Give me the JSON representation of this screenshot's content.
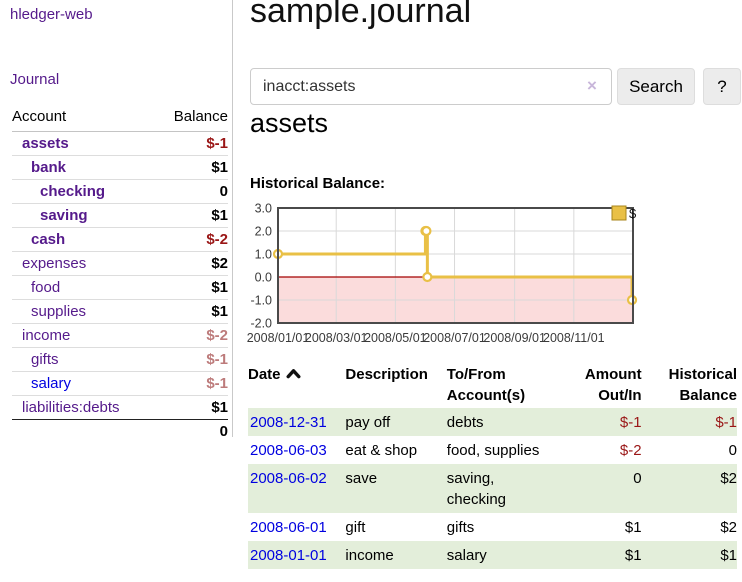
{
  "sidebar": {
    "brand": "hledger-web",
    "journal_link": "Journal",
    "accounts_table": {
      "headers": [
        "Account",
        "Balance"
      ],
      "rows": [
        {
          "account": "assets",
          "depth": 1,
          "bold": true,
          "balance": "$-1",
          "balance_style": "negative-strong"
        },
        {
          "account": "bank",
          "depth": 2,
          "bold": true,
          "balance": "$1",
          "balance_style": "normal"
        },
        {
          "account": "checking",
          "depth": 3,
          "bold": true,
          "balance": "0",
          "balance_style": "normal"
        },
        {
          "account": "saving",
          "depth": 3,
          "bold": true,
          "balance": "$1",
          "balance_style": "normal"
        },
        {
          "account": "cash",
          "depth": 2,
          "bold": true,
          "balance": "$-2",
          "balance_style": "negative-strong"
        },
        {
          "account": "expenses",
          "depth": 1,
          "bold": false,
          "balance": "$2",
          "balance_style": "normal"
        },
        {
          "account": "food",
          "depth": 2,
          "bold": false,
          "balance": "$1",
          "balance_style": "normal"
        },
        {
          "account": "supplies",
          "depth": 2,
          "bold": false,
          "balance": "$1",
          "balance_style": "normal"
        },
        {
          "account": "income",
          "depth": 1,
          "bold": false,
          "balance": "$-2",
          "balance_style": "negative-soft"
        },
        {
          "account": "gifts",
          "depth": 2,
          "bold": false,
          "balance": "$-1",
          "balance_style": "negative-soft"
        },
        {
          "account": "salary",
          "depth": 2,
          "bold": false,
          "link_color": "blue",
          "balance": "$-1",
          "balance_style": "negative-soft"
        },
        {
          "account": "liabilities:debts",
          "depth": 1,
          "bold": false,
          "balance": "$1",
          "balance_style": "normal"
        }
      ],
      "total": "0"
    }
  },
  "main": {
    "title": "sample.journal",
    "search": {
      "value": "inacct:assets",
      "clear_icon": "×",
      "button_label": "Search",
      "help_label": "?"
    },
    "account_heading": "assets",
    "chart_label": "Historical Balance:",
    "register_table": {
      "headers": [
        {
          "line1": "Date",
          "line2": ""
        },
        {
          "line1": "Description",
          "line2": ""
        },
        {
          "line1": "To/From",
          "line2": "Account(s)"
        },
        {
          "line1": "Amount",
          "line2": "Out/In"
        },
        {
          "line1": "Historical",
          "line2": "Balance"
        }
      ],
      "rows": [
        {
          "date": "2008-12-31",
          "description": "pay off",
          "accounts": "debts",
          "amount": "$-1",
          "amount_neg": true,
          "balance": "$-1",
          "balance_neg": true
        },
        {
          "date": "2008-06-03",
          "description": "eat & shop",
          "accounts": "food, supplies",
          "amount": "$-2",
          "amount_neg": true,
          "balance": "0",
          "balance_neg": false
        },
        {
          "date": "2008-06-02",
          "description": "save",
          "accounts": "saving, checking",
          "amount": "0",
          "amount_neg": false,
          "balance": "$2",
          "balance_neg": false
        },
        {
          "date": "2008-06-01",
          "description": "gift",
          "accounts": "gifts",
          "amount": "$1",
          "amount_neg": false,
          "balance": "$2",
          "balance_neg": false
        },
        {
          "date": "2008-01-01",
          "description": "income",
          "accounts": "salary",
          "amount": "$1",
          "amount_neg": false,
          "balance": "$1",
          "balance_neg": false
        }
      ]
    }
  },
  "chart_data": {
    "type": "line",
    "title": "Historical Balance:",
    "step": true,
    "series": [
      {
        "name": "$",
        "x": [
          "2008-01-01",
          "2008-06-01",
          "2008-06-02",
          "2008-06-03",
          "2008-12-31"
        ],
        "values": [
          1,
          2,
          2,
          0,
          -1
        ]
      }
    ],
    "x_axis": {
      "start": "2008-01-01",
      "end": "2009-01-01"
    },
    "xticks": [
      "2008/01/01",
      "2008/03/01",
      "2008/05/01",
      "2008/07/01",
      "2008/09/01",
      "2008/11/01"
    ],
    "yticks": [
      3.0,
      2.0,
      1.0,
      0.0,
      -1.0,
      -2.0
    ],
    "ylim": [
      -2,
      3
    ],
    "grid": true,
    "legend_position": "top-right",
    "colors": {
      "line": "#e9c046",
      "marker_fill": "#ffffff",
      "negative_bg": "#fbdcdc",
      "zero_line": "#a40000",
      "gridline": "#d9d9d9",
      "border": "#4a4a4a"
    }
  }
}
